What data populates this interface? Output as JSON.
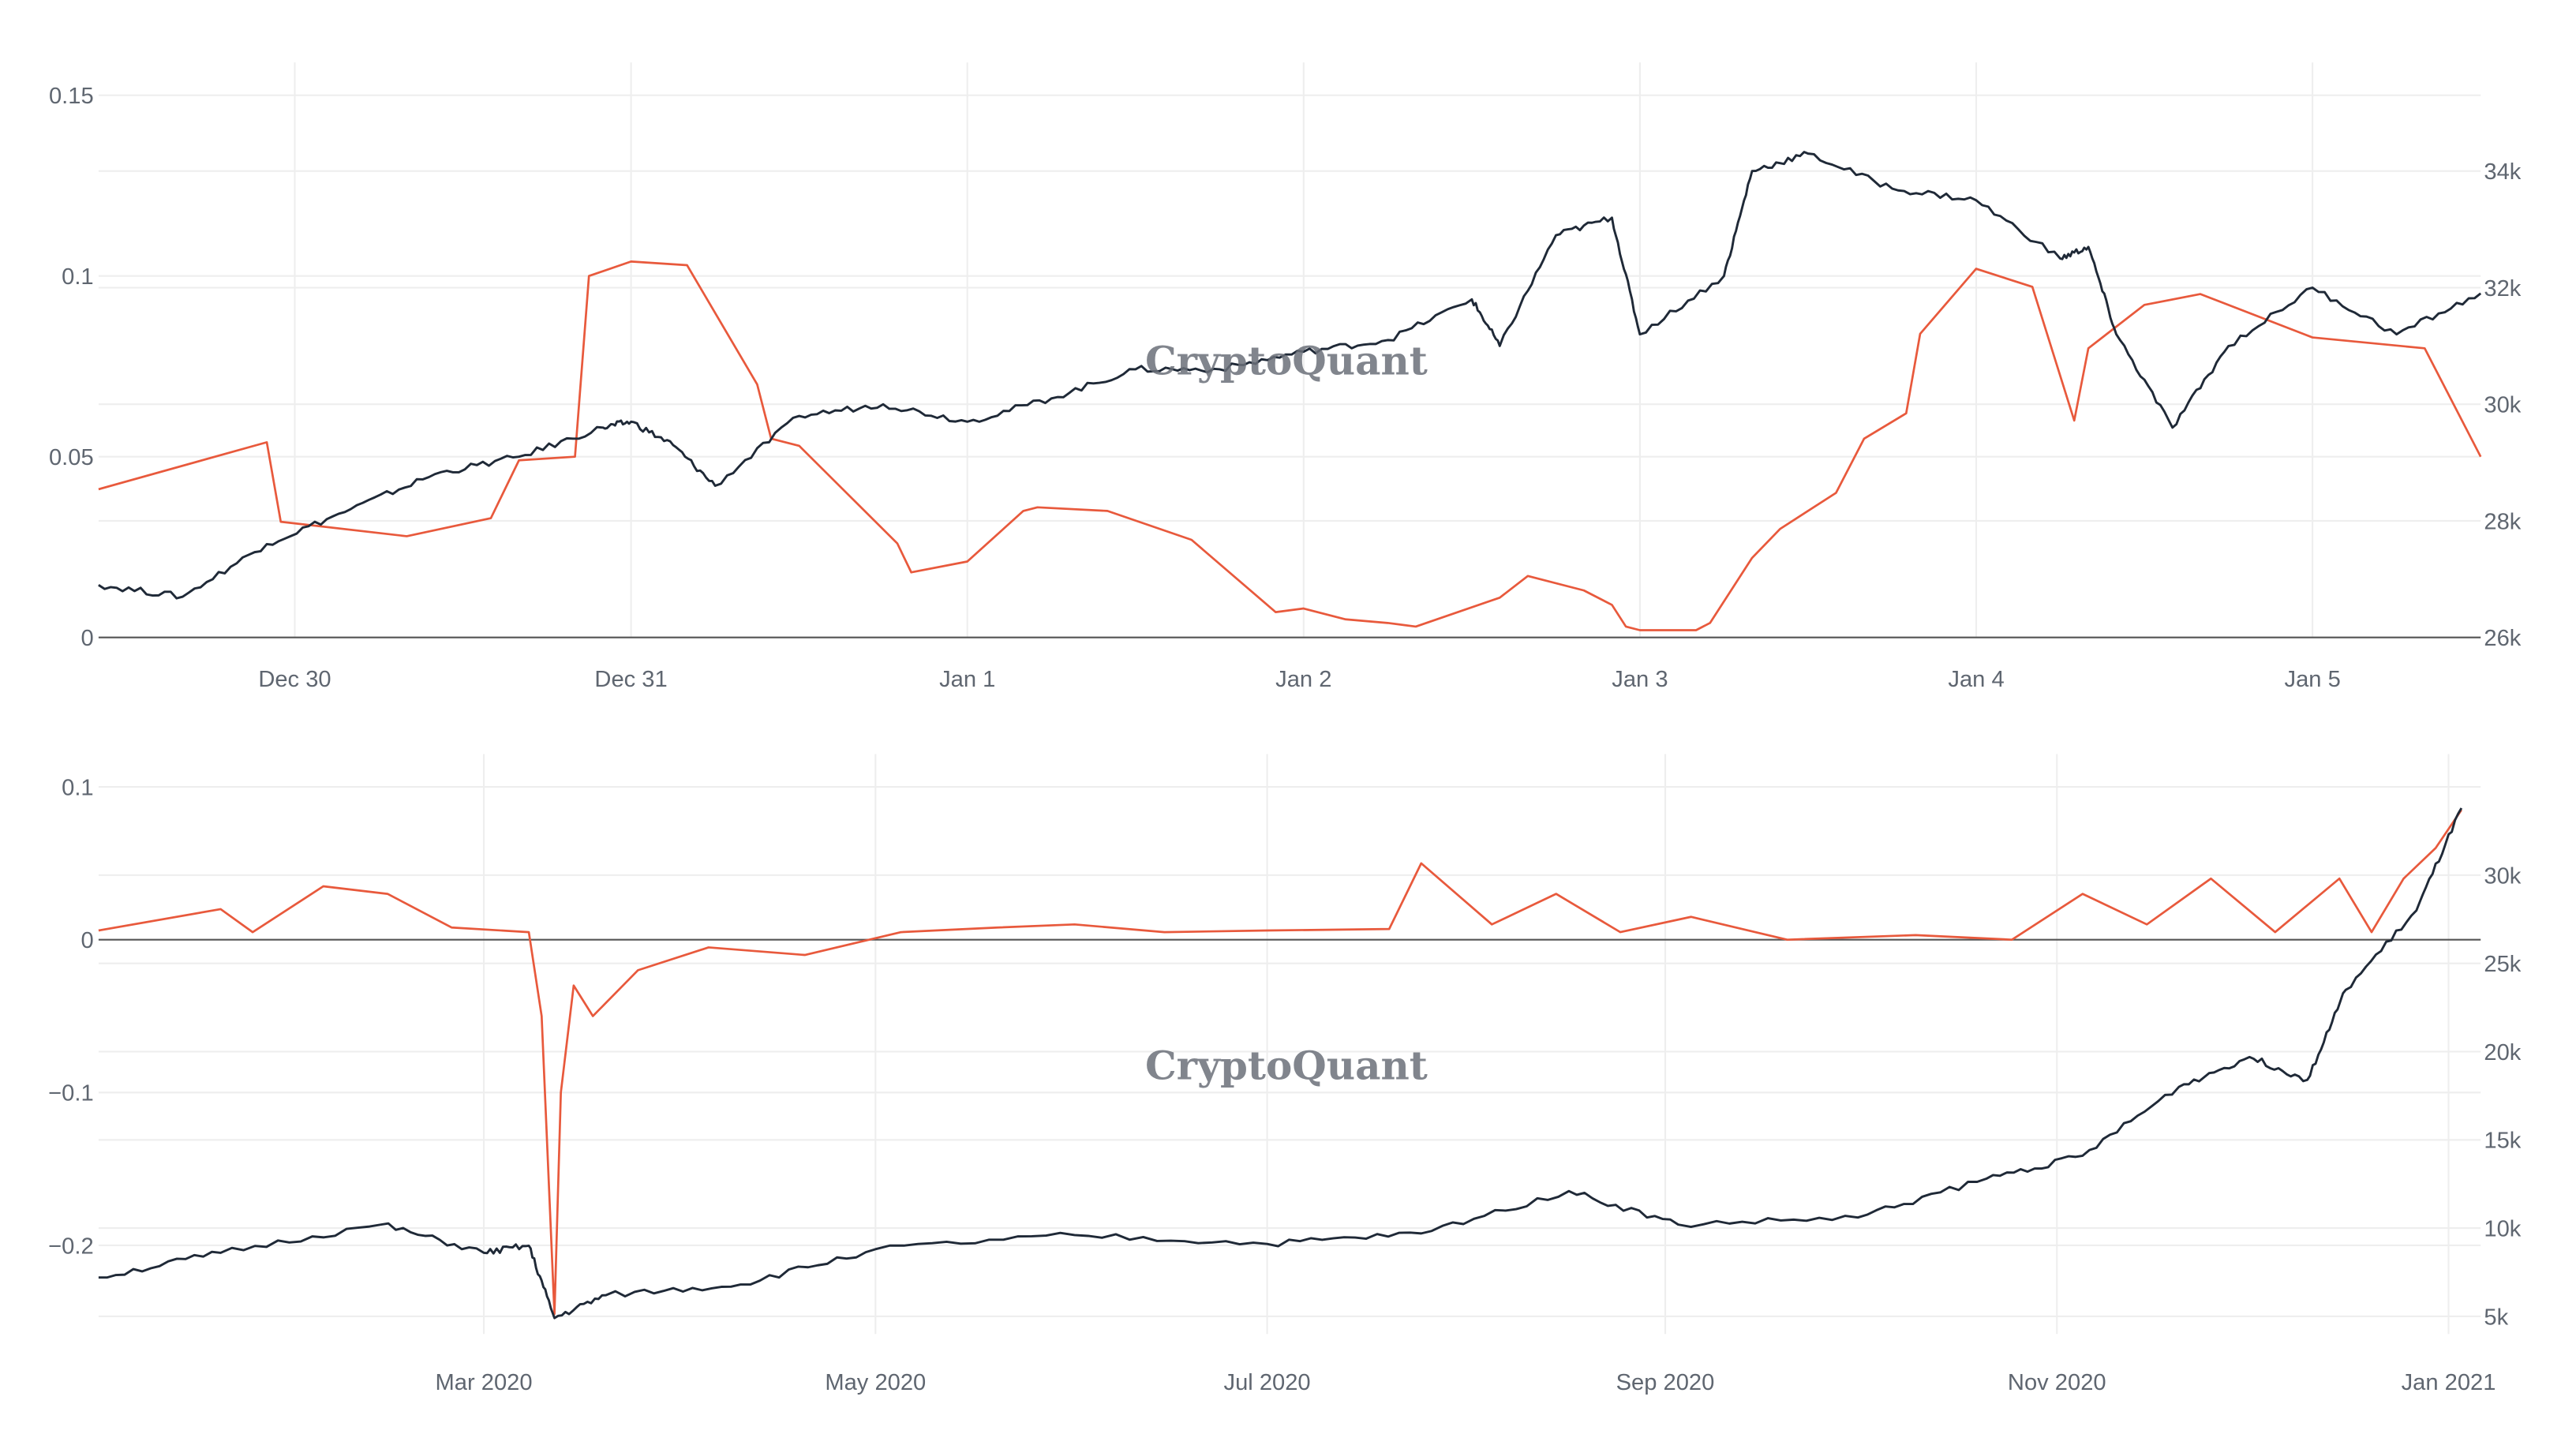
{
  "watermark": "CryptoQuant",
  "colors": {
    "primary_series": "#e8593c",
    "price_series": "#1f2937",
    "axis_text": "#5f6670",
    "grid": "#eeeeee"
  },
  "chart_data": [
    {
      "type": "line",
      "x_axis": {
        "kind": "date",
        "range": [
          "2020-12-29T10:00",
          "2021-01-05T12:00"
        ],
        "ticks": [
          {
            "value": "2020-12-30T00:00",
            "label": "Dec 30"
          },
          {
            "value": "2020-12-31T00:00",
            "label": "Dec 31"
          },
          {
            "value": "2021-01-01T00:00",
            "label": "Jan 1"
          },
          {
            "value": "2021-01-02T00:00",
            "label": "Jan 2"
          },
          {
            "value": "2021-01-03T00:00",
            "label": "Jan 3"
          },
          {
            "value": "2021-01-04T00:00",
            "label": "Jan 4"
          },
          {
            "value": "2021-01-05T00:00",
            "label": "Jan 5"
          }
        ]
      },
      "y_left": {
        "range": [
          0,
          0.15
        ],
        "ticks": [
          0,
          0.05,
          0.1,
          0.15
        ],
        "tick_labels": [
          "0",
          "0.05",
          "0.1",
          "0.15"
        ]
      },
      "y_right": {
        "range": [
          26000,
          35300
        ],
        "ticks": [
          26000,
          28000,
          30000,
          32000,
          34000
        ],
        "tick_labels": [
          "26k",
          "28k",
          "30k",
          "32k",
          "34k"
        ]
      },
      "grid": true,
      "series": [
        {
          "axis": "left",
          "color": "#e8593c",
          "x": [
            "2020-12-29T10:00",
            "2020-12-29T22:00",
            "2020-12-29T23:00",
            "2020-12-30T08:00",
            "2020-12-30T14:00",
            "2020-12-30T16:00",
            "2020-12-30T20:00",
            "2020-12-30T21:00",
            "2020-12-31T00:00",
            "2020-12-31T04:00",
            "2020-12-31T09:00",
            "2020-12-31T10:00",
            "2020-12-31T12:00",
            "2020-12-31T19:00",
            "2020-12-31T20:00",
            "2021-01-01T00:00",
            "2021-01-01T04:00",
            "2021-01-01T05:00",
            "2021-01-01T10:00",
            "2021-01-01T16:00",
            "2021-01-01T22:00",
            "2021-01-02T00:00",
            "2021-01-02T03:00",
            "2021-01-02T06:00",
            "2021-01-02T08:00",
            "2021-01-02T14:00",
            "2021-01-02T16:00",
            "2021-01-02T20:00",
            "2021-01-02T22:00",
            "2021-01-02T23:00",
            "2021-01-03T00:00",
            "2021-01-03T04:00",
            "2021-01-03T05:00",
            "2021-01-03T08:00",
            "2021-01-03T10:00",
            "2021-01-03T14:00",
            "2021-01-03T16:00",
            "2021-01-03T19:00",
            "2021-01-03T20:00",
            "2021-01-04T00:00",
            "2021-01-04T04:00",
            "2021-01-04T07:00",
            "2021-01-04T08:00",
            "2021-01-04T12:00",
            "2021-01-04T16:00",
            "2021-01-05T00:00",
            "2021-01-05T08:00",
            "2021-01-05T12:00"
          ],
          "y": [
            0.041,
            0.054,
            0.032,
            0.028,
            0.033,
            0.049,
            0.05,
            0.1,
            0.104,
            0.103,
            0.07,
            0.055,
            0.053,
            0.026,
            0.018,
            0.021,
            0.035,
            0.036,
            0.035,
            0.027,
            0.007,
            0.008,
            0.005,
            0.004,
            0.003,
            0.011,
            0.017,
            0.013,
            0.009,
            0.003,
            0.002,
            0.002,
            0.004,
            0.022,
            0.03,
            0.04,
            0.055,
            0.062,
            0.084,
            0.102,
            0.097,
            0.06,
            0.08,
            0.092,
            0.095,
            0.083,
            0.08,
            0.05
          ]
        },
        {
          "axis": "right",
          "color": "#1f2937",
          "x": [
            "2020-12-29T10:00",
            "2020-12-29T16:00",
            "2020-12-29T22:00",
            "2020-12-30T04:00",
            "2020-12-30T10:00",
            "2020-12-30T16:00",
            "2020-12-30T22:00",
            "2020-12-31T00:00",
            "2020-12-31T03:00",
            "2020-12-31T06:00",
            "2020-12-31T12:00",
            "2020-12-31T18:00",
            "2021-01-01T00:00",
            "2021-01-01T06:00",
            "2021-01-01T12:00",
            "2021-01-01T18:00",
            "2021-01-02T00:00",
            "2021-01-02T06:00",
            "2021-01-02T12:00",
            "2021-01-02T14:00",
            "2021-01-02T18:00",
            "2021-01-02T22:00",
            "2021-01-03T00:00",
            "2021-01-03T06:00",
            "2021-01-03T08:00",
            "2021-01-03T12:00",
            "2021-01-03T18:00",
            "2021-01-04T00:00",
            "2021-01-04T06:00",
            "2021-01-04T08:00",
            "2021-01-04T10:00",
            "2021-01-04T14:00",
            "2021-01-04T18:00",
            "2021-01-05T00:00",
            "2021-01-05T06:00",
            "2021-01-05T12:00"
          ],
          "y": [
            26900,
            26700,
            27600,
            28200,
            28800,
            29100,
            29600,
            29700,
            29300,
            28600,
            29800,
            30000,
            29700,
            30100,
            30600,
            30600,
            30900,
            31100,
            31800,
            31000,
            32900,
            33200,
            31200,
            32200,
            34000,
            34300,
            33700,
            33500,
            32500,
            32700,
            31200,
            29600,
            31000,
            32000,
            31200,
            31900
          ]
        }
      ]
    },
    {
      "type": "line",
      "x_axis": {
        "kind": "date",
        "range": [
          "2020-01-01",
          "2021-01-06"
        ],
        "ticks": [
          {
            "value": "2020-03-01",
            "label": "Mar 2020"
          },
          {
            "value": "2020-05-01",
            "label": "May 2020"
          },
          {
            "value": "2020-07-01",
            "label": "Jul 2020"
          },
          {
            "value": "2020-09-01",
            "label": "Sep 2020"
          },
          {
            "value": "2020-11-01",
            "label": "Nov 2020"
          },
          {
            "value": "2021-01-01",
            "label": "Jan 2021"
          }
        ]
      },
      "y_left": {
        "range": [
          -0.258,
          0.1
        ],
        "ticks": [
          -0.2,
          -0.1,
          0,
          0.1
        ],
        "tick_labels": [
          "−0.2",
          "−0.1",
          "0",
          "0.1"
        ]
      },
      "y_right": {
        "range": [
          4000,
          35000
        ],
        "ticks": [
          5000,
          10000,
          15000,
          20000,
          25000,
          30000
        ],
        "tick_labels": [
          "5k",
          "10k",
          "15k",
          "20k",
          "25k",
          "30k"
        ]
      },
      "grid": true,
      "series": [
        {
          "axis": "left",
          "color": "#e8593c",
          "x": [
            "2020-01-01",
            "2020-01-20",
            "2020-01-25",
            "2020-02-05",
            "2020-02-15",
            "2020-02-25",
            "2020-03-08",
            "2020-03-10",
            "2020-03-12",
            "2020-03-13",
            "2020-03-15",
            "2020-03-18",
            "2020-03-25",
            "2020-04-05",
            "2020-04-20",
            "2020-05-05",
            "2020-05-20",
            "2020-06-01",
            "2020-06-15",
            "2020-07-01",
            "2020-07-20",
            "2020-07-25",
            "2020-08-05",
            "2020-08-15",
            "2020-08-25",
            "2020-09-05",
            "2020-09-20",
            "2020-10-10",
            "2020-10-25",
            "2020-11-05",
            "2020-11-15",
            "2020-11-25",
            "2020-12-05",
            "2020-12-15",
            "2020-12-20",
            "2020-12-25",
            "2020-12-30",
            "2021-01-03"
          ],
          "y": [
            0.006,
            0.02,
            0.005,
            0.035,
            0.03,
            0.008,
            0.005,
            -0.05,
            -0.245,
            -0.1,
            -0.03,
            -0.05,
            -0.02,
            -0.005,
            -0.01,
            0.005,
            0.008,
            0.01,
            0.005,
            0.006,
            0.007,
            0.05,
            0.01,
            0.03,
            0.005,
            0.015,
            0.0,
            0.003,
            0.0,
            0.03,
            0.01,
            0.04,
            0.005,
            0.04,
            0.005,
            0.04,
            0.06,
            0.085
          ]
        },
        {
          "axis": "right",
          "color": "#1f2937",
          "x": [
            "2020-01-01",
            "2020-01-20",
            "2020-02-14",
            "2020-03-01",
            "2020-03-08",
            "2020-03-12",
            "2020-03-20",
            "2020-04-10",
            "2020-05-01",
            "2020-06-01",
            "2020-07-01",
            "2020-07-25",
            "2020-08-17",
            "2020-09-03",
            "2020-10-01",
            "2020-10-21",
            "2020-11-05",
            "2020-11-20",
            "2020-12-01",
            "2020-12-10",
            "2020-12-16",
            "2020-12-27",
            "2021-01-03"
          ],
          "y": [
            7200,
            8600,
            10200,
            8600,
            9000,
            4900,
            6200,
            6800,
            8800,
            9600,
            9100,
            9700,
            12100,
            10200,
            10600,
            12800,
            14100,
            18000,
            19700,
            18400,
            23500,
            28000,
            33800
          ]
        }
      ]
    }
  ]
}
